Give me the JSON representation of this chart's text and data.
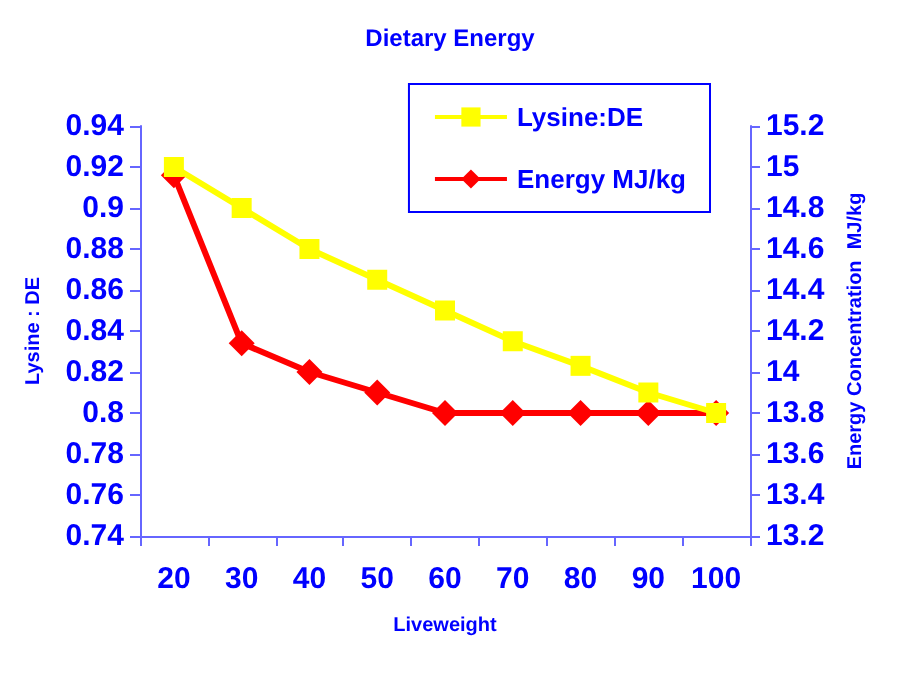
{
  "chart_data": {
    "type": "line",
    "title": "Dietary Energy",
    "xlabel": "Liveweight",
    "ylabel": "Lysine : DE",
    "y2label": "Energy Concentration  MJ/kg",
    "categories": [
      "20",
      "30",
      "40",
      "50",
      "60",
      "70",
      "80",
      "90",
      "100"
    ],
    "series": [
      {
        "name": "Lysine:DE",
        "color": "#ffff00",
        "marker": "square",
        "values": [
          0.92,
          0.9,
          0.88,
          0.865,
          0.85,
          0.835,
          0.823,
          0.81,
          0.8
        ]
      },
      {
        "name": "Energy MJ/kg",
        "color": "#ff0000",
        "marker": "diamond",
        "axis": "y2",
        "values": [
          14.96,
          14.14,
          14.0,
          13.9,
          13.8,
          13.8,
          13.8,
          13.8,
          13.8
        ]
      }
    ],
    "ylim": [
      0.74,
      0.94
    ],
    "yticks": [
      0.74,
      0.76,
      0.78,
      0.8,
      0.82,
      0.84,
      0.86,
      0.88,
      0.9,
      0.92,
      0.94
    ],
    "y2lim": [
      13.2,
      15.2
    ],
    "y2ticks": [
      13.2,
      13.4,
      13.6,
      13.8,
      14,
      14.2,
      14.4,
      14.6,
      14.8,
      15,
      15.2
    ],
    "legend": "top right",
    "grid": false
  }
}
